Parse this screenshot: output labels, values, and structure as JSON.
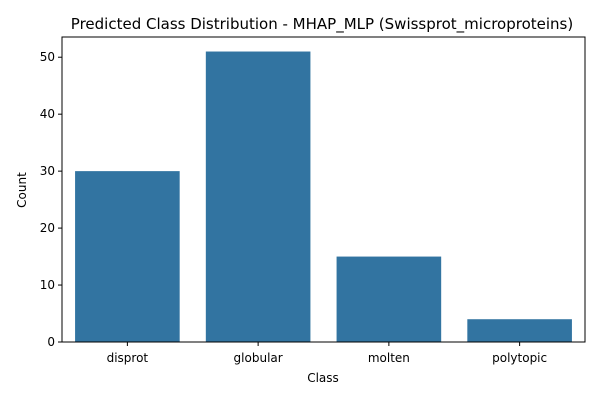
{
  "chart_data": {
    "type": "bar",
    "title": "Predicted Class Distribution - MHAP_MLP (Swissprot_microproteins)",
    "xlabel": "Class",
    "ylabel": "Count",
    "categories": [
      "disprot",
      "globular",
      "molten",
      "polytopic"
    ],
    "values": [
      30,
      51,
      15,
      4
    ],
    "ylim": [
      0,
      53.55
    ],
    "yticks": [
      0,
      10,
      20,
      30,
      40,
      50
    ],
    "bar_color": "#3274a1",
    "grid": false,
    "legend": "none"
  }
}
